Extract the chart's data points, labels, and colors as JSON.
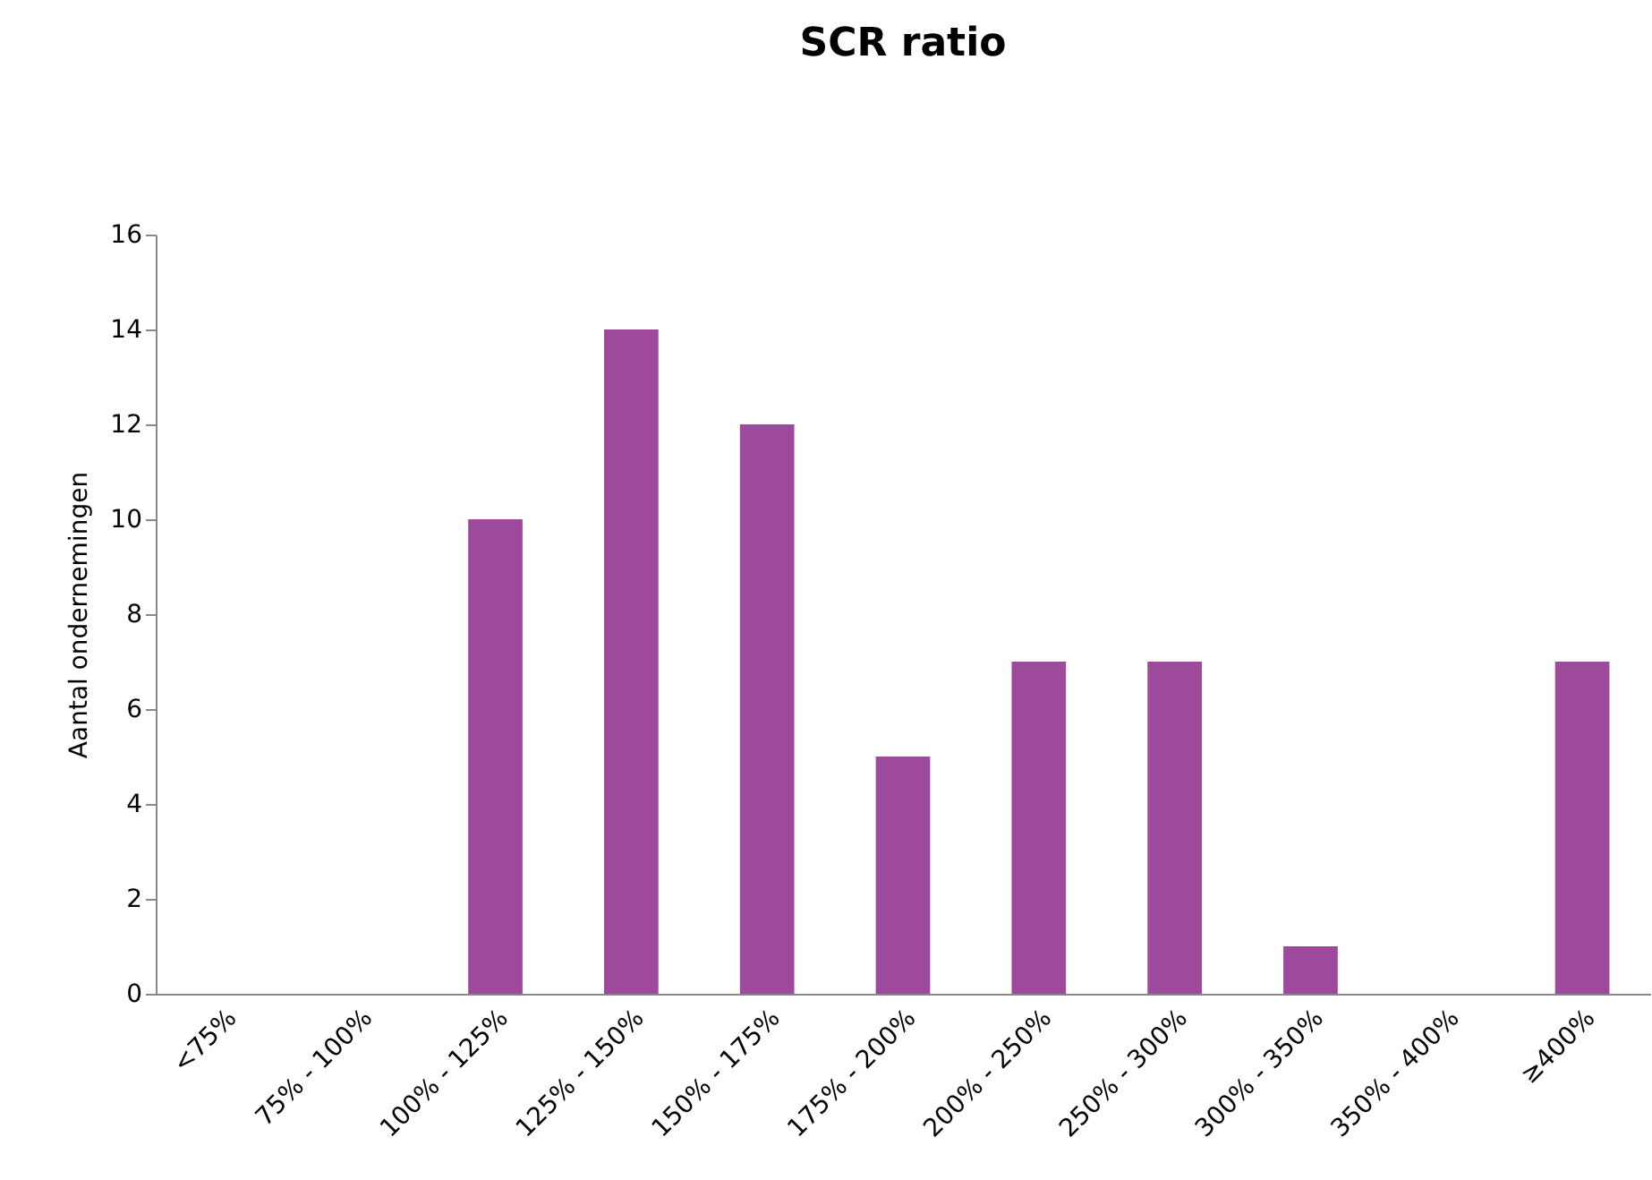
{
  "chart_data": {
    "type": "bar",
    "title": "SCR ratio",
    "ylabel": "Aantal ondernemingen",
    "categories": [
      "<75%",
      "75% - 100%",
      "100% - 125%",
      "125% - 150%",
      "150% - 175%",
      "175% - 200%",
      "200% - 250%",
      "250% - 300%",
      "300% - 350%",
      "350% - 400%",
      "≥400%"
    ],
    "values": [
      0,
      0,
      10,
      14,
      12,
      5,
      7,
      7,
      1,
      0,
      7
    ],
    "color": "#9e4a9c",
    "ylim": [
      0,
      16
    ],
    "yticks": [
      0,
      2,
      4,
      6,
      8,
      10,
      12,
      14,
      16
    ],
    "grid": false
  }
}
